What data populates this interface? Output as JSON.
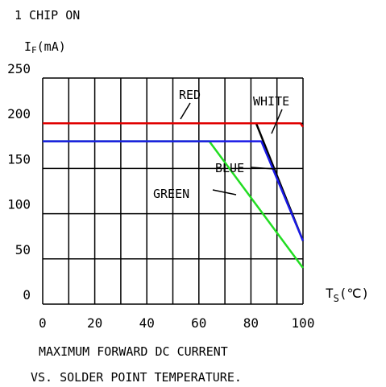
{
  "chart_data": {
    "type": "line",
    "header": "1 CHIP ON",
    "ylabel_main": "I",
    "ylabel_sub": "F",
    "ylabel_unit": "(mA)",
    "xlabel_main": "T",
    "xlabel_sub": "S",
    "xlabel_unit": "(℃)",
    "caption_line1": "MAXIMUM FORWARD DC CURRENT",
    "caption_line2": "VS. SOLDER POINT TEMPERATURE.",
    "xlim": [
      0,
      100
    ],
    "ylim": [
      0,
      250
    ],
    "x_ticks": [
      "0",
      "20",
      "40",
      "60",
      "80",
      "100"
    ],
    "y_ticks": [
      "0",
      "50",
      "100",
      "150",
      "200",
      "250"
    ],
    "grid": true,
    "series": [
      {
        "name": "RED",
        "color": "#e00000",
        "points": [
          [
            0,
            200
          ],
          [
            99,
            200
          ],
          [
            100,
            196
          ]
        ]
      },
      {
        "name": "WHITE",
        "color": "#000000",
        "points": [
          [
            82,
            200
          ],
          [
            100,
            70
          ]
        ]
      },
      {
        "name": "BLUE",
        "color": "#1a1ae6",
        "points": [
          [
            0,
            180
          ],
          [
            84,
            180
          ],
          [
            100,
            70
          ]
        ]
      },
      {
        "name": "GREEN",
        "color": "#22dd22",
        "points": [
          [
            0,
            180
          ],
          [
            64,
            180
          ],
          [
            100,
            40
          ]
        ]
      }
    ]
  }
}
